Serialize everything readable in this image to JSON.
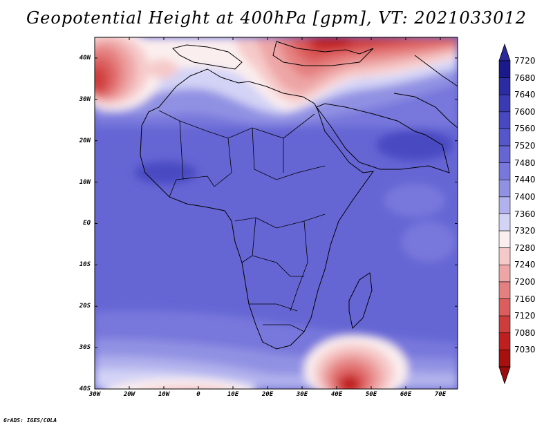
{
  "title": "Geopotential Height at 400hPa [gpm], VT: 2021033012",
  "credit": "GrADS: IGES/COLA",
  "map": {
    "lat_labels": [
      "40N",
      "30N",
      "20N",
      "10N",
      "EQ",
      "10S",
      "20S",
      "30S",
      "40S"
    ],
    "lon_labels": [
      "30W",
      "20W",
      "10W",
      "0",
      "10E",
      "20E",
      "30E",
      "40E",
      "50E",
      "60E",
      "70E"
    ],
    "lon_range": [
      -30,
      75
    ],
    "lat_range": [
      -40,
      45
    ]
  },
  "colorbar": {
    "labels": [
      "7720",
      "7680",
      "7640",
      "7600",
      "7560",
      "7520",
      "7480",
      "7440",
      "7400",
      "7360",
      "7320",
      "7280",
      "7240",
      "7200",
      "7160",
      "7120",
      "7080",
      "7030"
    ],
    "colors": [
      "#1a1a8c",
      "#2b2ba3",
      "#3a3ab5",
      "#4848c2",
      "#5656cc",
      "#6565d4",
      "#7777dc",
      "#9191e3",
      "#b1b1ed",
      "#d3d3f6",
      "#fbeeee",
      "#f6c9c9",
      "#eea5a5",
      "#e58080",
      "#dc5d5d",
      "#cf3c3c",
      "#c01f1f",
      "#a81010"
    ],
    "colormax_top": "#2a2a9a",
    "colormin_bottom": "#9b0d0d"
  }
}
